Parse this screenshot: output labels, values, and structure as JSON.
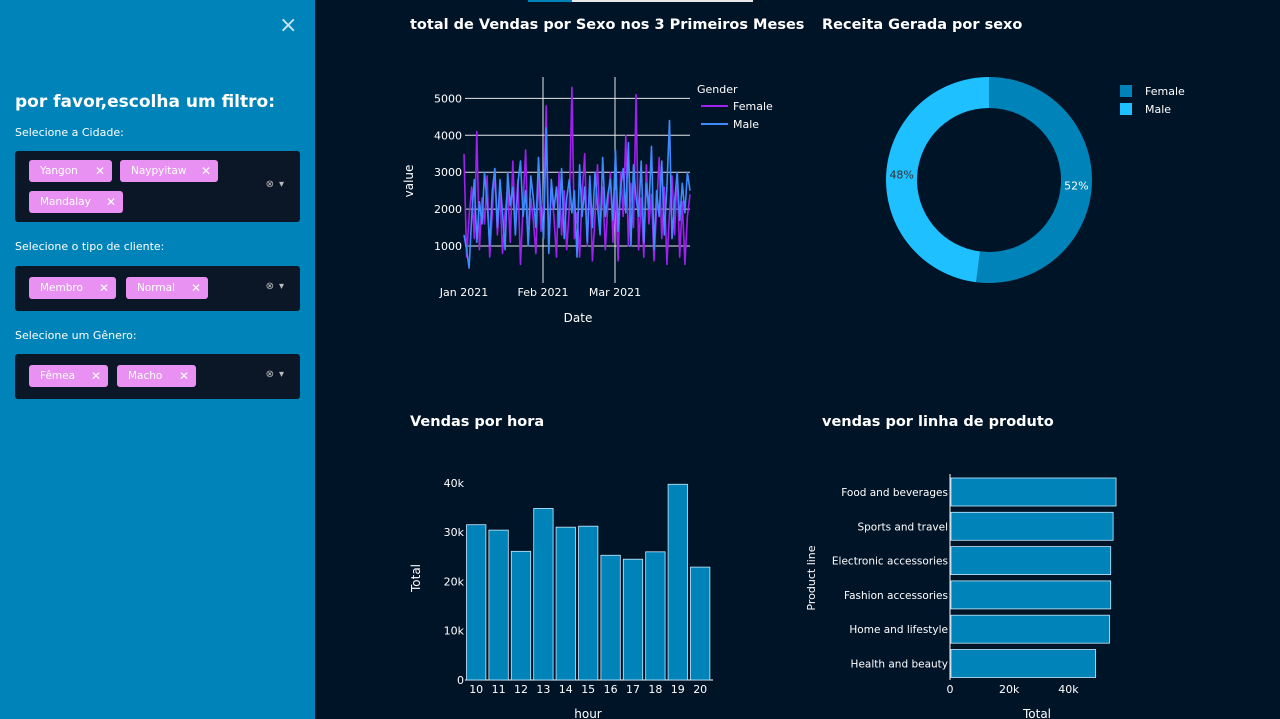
{
  "sidebar": {
    "close_icon": "×",
    "title": "por favor,escolha um filtro:",
    "city": {
      "label": "Selecione a Cidade:",
      "tags": [
        "Yangon",
        "Naypyitaw",
        "Mandalay"
      ]
    },
    "customer": {
      "label": "Selecione o tipo de cliente:",
      "tags": [
        "Membro",
        "Normal"
      ]
    },
    "gender": {
      "label": "Selecione um Gênero:",
      "tags": [
        "Fêmea",
        "Macho"
      ]
    },
    "tag_remove_icon": "✕",
    "clear_icon": "⊗",
    "dropdown_icon": "▾"
  },
  "colors": {
    "sidebar_bg": "#0083b8",
    "page_bg": "#001428",
    "tag_bg": "#e891f2",
    "bar": "#0083b8",
    "female_line": "#a020f0",
    "male_line": "#3d8bff",
    "female_slice": "#0083b8",
    "male_slice": "#1ec0ff"
  },
  "charts": {
    "line_title": "total de Vendas por Sexo nos 3 Primeiros Meses",
    "pie_title": "Receita Gerada por sexo",
    "hour_title": "Vendas por hora",
    "product_title": "vendas por linha de produto"
  },
  "chart_data": [
    {
      "type": "line",
      "title": "total de Vendas por Sexo nos 3 Primeiros Meses",
      "xlabel": "Date",
      "ylabel": "value",
      "x_ticks": [
        "Jan 2021",
        "Feb 2021",
        "Mar 2021"
      ],
      "y_ticks": [
        1000,
        2000,
        3000,
        4000,
        5000
      ],
      "ylim": [
        0,
        5500
      ],
      "legend_title": "Gender",
      "series": [
        {
          "name": "Female",
          "values": [
            3500,
            700,
            1800,
            2600,
            1200,
            4100,
            900,
            2300,
            1600,
            2900,
            700,
            1900,
            3100,
            1300,
            2500,
            800,
            1900,
            2600,
            1100,
            3300,
            1500,
            2800,
            500,
            2100,
            3600,
            1000,
            2300,
            1700,
            800,
            2900,
            1400,
            2200,
            4800,
            900,
            2600,
            1800,
            700,
            3000,
            1300,
            2500,
            900,
            2000,
            5300,
            1200,
            1900,
            700,
            2400,
            3500,
            1000,
            2800,
            600,
            1800,
            3200,
            1400,
            2600,
            900,
            2100,
            3000,
            1100,
            2500,
            600,
            3000,
            1800,
            4000,
            1000,
            2700,
            1500,
            5100,
            900,
            2300,
            700,
            3200,
            1600,
            2400,
            600,
            2000,
            3400,
            1200,
            2600,
            500,
            1900,
            2900,
            1300,
            3000,
            700,
            2200,
            500,
            1800,
            2400
          ]
        },
        {
          "name": "Male",
          "values": [
            1300,
            900,
            400,
            1800,
            2800,
            1100,
            2200,
            1600,
            3000,
            2200,
            1000,
            2500,
            3100,
            1500,
            2800,
            1900,
            900,
            3000,
            2100,
            2600,
            1300,
            2700,
            3300,
            1800,
            2500,
            1000,
            2900,
            2300,
            1500,
            3400,
            2100,
            1200,
            4200,
            800,
            2800,
            2000,
            2600,
            1500,
            3100,
            1200,
            2300,
            2800,
            1900,
            2500,
            700,
            3200,
            1800,
            2600,
            1100,
            2900,
            1500,
            3000,
            2100,
            1300,
            3400,
            1800,
            2400,
            2800,
            1700,
            3600,
            1400,
            2600,
            3100,
            1900,
            3800,
            1000,
            3200,
            2300,
            1800,
            3300,
            1100,
            2700,
            2000,
            3700,
            900,
            2500,
            1800,
            3300,
            1300,
            2600,
            4400,
            1200,
            2200,
            3000,
            1700,
            2700,
            1900,
            3000,
            2500
          ]
        }
      ]
    },
    {
      "type": "pie",
      "title": "Receita Gerada por sexo",
      "labels": [
        "Female",
        "Male"
      ],
      "values": [
        52,
        48
      ],
      "value_labels": [
        "52%",
        "48%"
      ],
      "hole": 0.7
    },
    {
      "type": "bar",
      "title": "Vendas por hora",
      "xlabel": "hour",
      "ylabel": "Total",
      "categories": [
        "10",
        "11",
        "12",
        "13",
        "14",
        "15",
        "16",
        "17",
        "18",
        "19",
        "20"
      ],
      "values": [
        31500,
        30400,
        26100,
        34800,
        31000,
        31200,
        25300,
        24500,
        26000,
        39700,
        22900
      ],
      "y_ticks": [
        "0",
        "10k",
        "20k",
        "30k",
        "40k"
      ],
      "y_tick_values": [
        0,
        10000,
        20000,
        30000,
        40000
      ],
      "ylim": [
        0,
        40000
      ]
    },
    {
      "type": "bar",
      "orientation": "horizontal",
      "title": "vendas por linha de produto",
      "xlabel": "Total",
      "ylabel": "Product line",
      "categories": [
        "Food and beverages",
        "Sports and travel",
        "Electronic accessories",
        "Fashion accessories",
        "Home and lifestyle",
        "Health and beauty"
      ],
      "values": [
        56100,
        55100,
        54300,
        54300,
        53900,
        49200
      ],
      "x_ticks": [
        "0",
        "20k",
        "40k"
      ],
      "x_tick_values": [
        0,
        20000,
        40000
      ],
      "xlim": [
        0,
        60000
      ]
    }
  ]
}
